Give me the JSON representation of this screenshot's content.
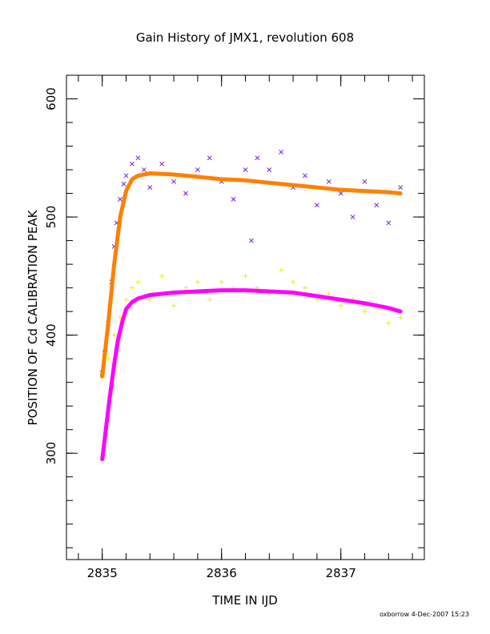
{
  "chart_data": {
    "type": "scatter",
    "title": "Gain History of JMX1, revolution 608",
    "xlabel": "TIME IN IJD",
    "ylabel": "POSITION OF Cd CALIBRATION PEAK",
    "xlim": [
      2834.7,
      2837.7
    ],
    "ylim": [
      210,
      620
    ],
    "x_ticks": [
      2835,
      2836,
      2837
    ],
    "y_ticks": [
      300,
      400,
      500,
      600
    ],
    "grid": false,
    "series": [
      {
        "marker": "x",
        "color": "#7b1fd0",
        "points": [
          [
            2835.0,
            368
          ],
          [
            2835.02,
            385
          ],
          [
            2835.05,
            410
          ],
          [
            2835.08,
            445
          ],
          [
            2835.1,
            475
          ],
          [
            2835.12,
            495
          ],
          [
            2835.15,
            515
          ],
          [
            2835.18,
            528
          ],
          [
            2835.2,
            535
          ],
          [
            2835.25,
            545
          ],
          [
            2835.3,
            550
          ],
          [
            2835.35,
            540
          ],
          [
            2835.4,
            525
          ],
          [
            2835.5,
            545
          ],
          [
            2835.6,
            530
          ],
          [
            2835.7,
            520
          ],
          [
            2835.8,
            540
          ],
          [
            2835.9,
            550
          ],
          [
            2836.0,
            530
          ],
          [
            2836.1,
            515
          ],
          [
            2836.2,
            540
          ],
          [
            2836.25,
            480
          ],
          [
            2836.3,
            550
          ],
          [
            2836.4,
            540
          ],
          [
            2836.5,
            555
          ],
          [
            2836.6,
            525
          ],
          [
            2836.7,
            535
          ],
          [
            2836.8,
            510
          ],
          [
            2836.9,
            530
          ],
          [
            2837.0,
            520
          ],
          [
            2837.1,
            500
          ],
          [
            2837.2,
            530
          ],
          [
            2837.3,
            510
          ],
          [
            2837.4,
            495
          ],
          [
            2837.5,
            525
          ]
        ]
      },
      {
        "marker": "+",
        "color": "#f0f000",
        "points": [
          [
            2835.0,
            365
          ],
          [
            2835.05,
            380
          ],
          [
            2835.1,
            400
          ],
          [
            2835.15,
            415
          ],
          [
            2835.2,
            430
          ],
          [
            2835.25,
            440
          ],
          [
            2835.3,
            445
          ],
          [
            2835.4,
            430
          ],
          [
            2835.5,
            450
          ],
          [
            2835.6,
            425
          ],
          [
            2835.7,
            440
          ],
          [
            2835.8,
            445
          ],
          [
            2835.9,
            430
          ],
          [
            2836.0,
            445
          ],
          [
            2836.1,
            440
          ],
          [
            2836.2,
            450
          ],
          [
            2836.3,
            440
          ],
          [
            2836.4,
            435
          ],
          [
            2836.5,
            455
          ],
          [
            2836.6,
            445
          ],
          [
            2836.7,
            440
          ],
          [
            2836.8,
            430
          ],
          [
            2836.9,
            435
          ],
          [
            2837.0,
            425
          ],
          [
            2837.1,
            430
          ],
          [
            2837.2,
            420
          ],
          [
            2837.3,
            425
          ],
          [
            2837.4,
            410
          ],
          [
            2837.5,
            415
          ]
        ]
      },
      {
        "marker": "line",
        "color": "#ff8000",
        "points": [
          [
            2835.0,
            365
          ],
          [
            2835.05,
            410
          ],
          [
            2835.1,
            460
          ],
          [
            2835.15,
            500
          ],
          [
            2835.2,
            522
          ],
          [
            2835.25,
            532
          ],
          [
            2835.3,
            535
          ],
          [
            2835.4,
            537
          ],
          [
            2835.6,
            536
          ],
          [
            2835.8,
            534
          ],
          [
            2836.0,
            532
          ],
          [
            2836.2,
            531
          ],
          [
            2836.4,
            529
          ],
          [
            2836.6,
            527
          ],
          [
            2836.8,
            525
          ],
          [
            2837.0,
            523
          ],
          [
            2837.2,
            522
          ],
          [
            2837.4,
            521
          ],
          [
            2837.5,
            520
          ]
        ]
      },
      {
        "marker": "line",
        "color": "#ff00ff",
        "points": [
          [
            2835.0,
            295
          ],
          [
            2835.03,
            320
          ],
          [
            2835.06,
            345
          ],
          [
            2835.1,
            375
          ],
          [
            2835.13,
            395
          ],
          [
            2835.17,
            412
          ],
          [
            2835.2,
            422
          ],
          [
            2835.25,
            428
          ],
          [
            2835.3,
            431
          ],
          [
            2835.4,
            434
          ],
          [
            2835.6,
            436
          ],
          [
            2835.8,
            437
          ],
          [
            2836.0,
            438
          ],
          [
            2836.2,
            438
          ],
          [
            2836.4,
            437
          ],
          [
            2836.6,
            436
          ],
          [
            2836.8,
            433
          ],
          [
            2837.0,
            430
          ],
          [
            2837.2,
            427
          ],
          [
            2837.4,
            423
          ],
          [
            2837.5,
            420
          ]
        ]
      }
    ]
  },
  "footer": {
    "credit": "oxborrow   4-Dec-2007 15:23"
  }
}
